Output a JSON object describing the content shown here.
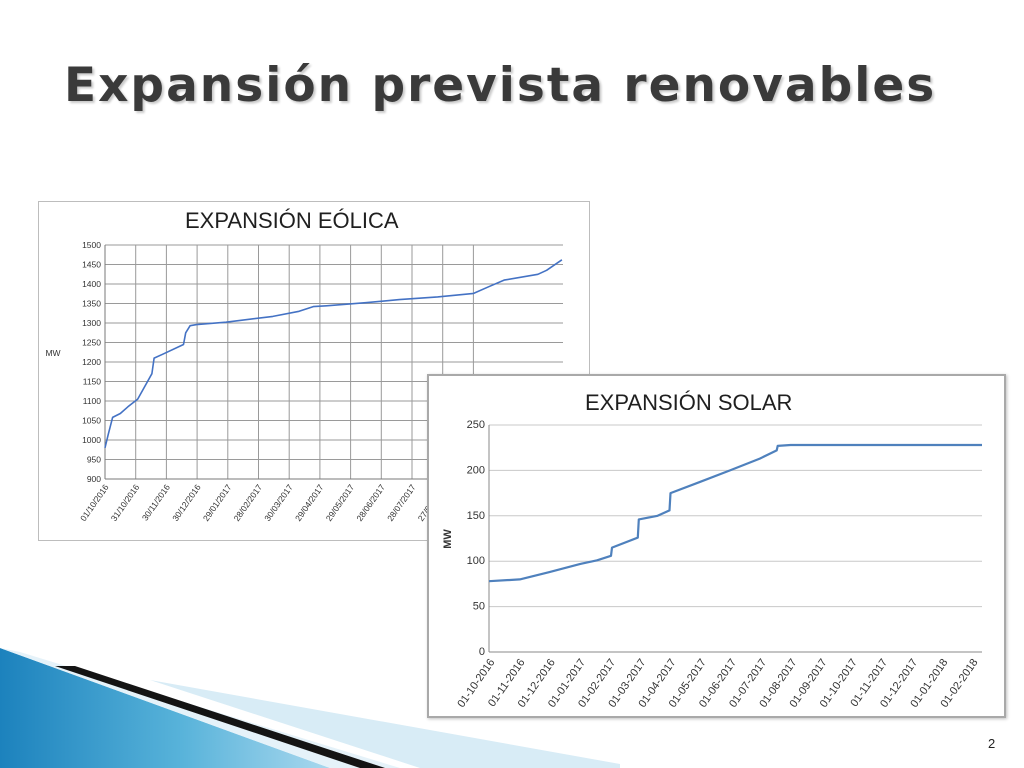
{
  "slide": {
    "title": "Expansión prevista renovables",
    "page_number": "2"
  },
  "chart_data": [
    {
      "type": "line",
      "title": "EXPANSIÓN EÓLICA",
      "ylabel": "MW",
      "ylim": [
        900,
        1500
      ],
      "yticks": [
        900,
        950,
        1000,
        1050,
        1100,
        1150,
        1200,
        1250,
        1300,
        1350,
        1400,
        1450,
        1500
      ],
      "x_tick_labels": [
        "01/10/2016",
        "31/10/2016",
        "30/11/2016",
        "30/12/2016",
        "29/01/2017",
        "28/02/2017",
        "30/03/2017",
        "29/04/2017",
        "29/05/2017",
        "28/06/2017",
        "28/07/2017",
        "27/08/2017",
        "2("
      ],
      "grid": true,
      "color": "#4472c4",
      "series": [
        {
          "x": [
            "2016-10-01",
            "2016-10-04",
            "2016-10-08",
            "2016-10-15",
            "2016-10-22",
            "2016-10-31",
            "2016-11-13",
            "2016-11-15",
            "2016-11-23",
            "2016-12-12",
            "2016-12-14",
            "2016-12-18",
            "2016-12-24",
            "2017-01-20",
            "2017-03-04",
            "2017-03-28",
            "2017-04-10",
            "2017-04-22",
            "2017-05-28",
            "2017-06-28",
            "2017-08-02",
            "2017-09-04",
            "2017-09-18",
            "2017-10-02",
            "2017-11-02",
            "2017-11-10",
            "2017-11-24"
          ],
          "y": [
            980,
            1015,
            1058,
            1068,
            1085,
            1105,
            1170,
            1210,
            1220,
            1245,
            1275,
            1293,
            1296,
            1302,
            1317,
            1330,
            1342,
            1344,
            1352,
            1360,
            1367,
            1376,
            1393,
            1410,
            1425,
            1435,
            1462
          ]
        }
      ]
    },
    {
      "type": "line",
      "title": "EXPANSIÓN SOLAR",
      "ylabel": "MW",
      "ylim": [
        0,
        250
      ],
      "yticks": [
        0,
        50,
        100,
        150,
        200,
        250
      ],
      "x_tick_labels": [
        "01-10-2016",
        "01-11-2016",
        "01-12-2016",
        "01-01-2017",
        "01-02-2017",
        "01-03-2017",
        "01-04-2017",
        "01-05-2017",
        "01-06-2017",
        "01-07-2017",
        "01-08-2017",
        "01-09-2017",
        "01-10-2017",
        "01-11-2017",
        "01-12-2017",
        "01-01-2018",
        "01-02-2018"
      ],
      "grid": true,
      "color": "#4f81bd",
      "series": [
        {
          "x": [
            "2016-10-01",
            "2016-11-01",
            "2016-12-01",
            "2017-01-01",
            "2017-01-18",
            "2017-02-01",
            "2017-02-02",
            "2017-02-28",
            "2017-03-01",
            "2017-03-20",
            "2017-04-01",
            "2017-04-02",
            "2017-05-01",
            "2017-06-01",
            "2017-07-01",
            "2017-07-18",
            "2017-07-19",
            "2017-08-01",
            "2017-10-01",
            "2017-12-01",
            "2018-02-10"
          ],
          "y": [
            78,
            80,
            88,
            97,
            101,
            106,
            115,
            126,
            146,
            150,
            156,
            175,
            187,
            200,
            213,
            222,
            227,
            228,
            228,
            228,
            228
          ]
        }
      ]
    }
  ]
}
